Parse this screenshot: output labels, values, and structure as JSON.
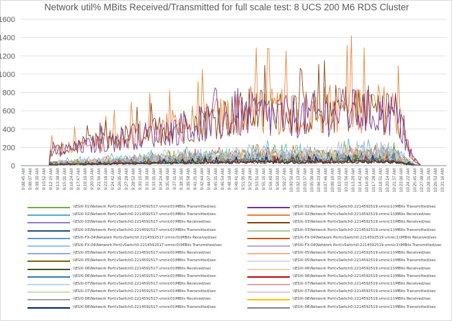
{
  "chart_data": {
    "type": "line",
    "title": "Network util% MBits Received/Transmitted for full scale test: 8 UCS 200  M6 RDS Cluster",
    "xlabel": "",
    "ylabel": "",
    "ylim": [
      0,
      1600
    ],
    "yticks": [
      0,
      200,
      400,
      600,
      800,
      1000,
      1200,
      1400,
      1600
    ],
    "grid": true,
    "legend_position": "bottom",
    "x_tick_labels": [
      "9:08:45 AM",
      "9:08:07 AM",
      "9:08:30 AM",
      "9:10:52 AM",
      "9:12:15 AM",
      "9:13:38 AM",
      "9:15:01 AM",
      "9:16:24 AM",
      "9:17:47 AM",
      "9:19:10 AM",
      "9:20:33 AM",
      "9:21:56 AM",
      "9:23:19 AM",
      "9:24:42 AM",
      "9:26:05 AM",
      "9:27:28 AM",
      "9:28:52 AM",
      "9:30:15 AM",
      "9:31:38 AM",
      "9:33:01 AM",
      "9:34:24 AM",
      "9:35:48 AM",
      "9:37:11 AM",
      "9:38:35 AM",
      "9:39:58 AM",
      "9:41:21 AM",
      "9:42:44 AM",
      "9:44:07 AM",
      "9:45:31 AM",
      "9:46:54 AM",
      "9:48:18 AM",
      "9:49:41 AM",
      "9:51:05 AM",
      "9:52:28 AM",
      "9:53:51 AM",
      "9:55:15 AM",
      "9:56:40 AM",
      "9:58:03 AM",
      "9:59:27 AM",
      "10:00:50 AM",
      "10:02:13 AM",
      "10:03:37 AM",
      "10:05:00 AM",
      "10:06:23 AM",
      "10:07:46 AM",
      "10:09:10 AM",
      "10:10:33 AM",
      "10:11:56 AM",
      "10:13:20 AM",
      "10:14:42 AM",
      "10:16:05 AM",
      "10:17:28 AM",
      "10:18:51 AM",
      "10:20:14 AM",
      "10:21:37 AM",
      "10:23:00 AM",
      "10:24:22 AM",
      "10:25:45 AM",
      "10:27:08 AM",
      "10:28:31 AM",
      "10:29:53 AM",
      "10:31:16 AM"
    ],
    "series_profiles": [
      {
        "name": "\\\\ESXi-01\\Network Port(vSwitch0:2214592517:vmnic0)\\MBits Transmitted/sec",
        "color": "#70ad47",
        "level": 120,
        "peak": 260,
        "width": 0.8
      },
      {
        "name": "\\\\ESXi-01\\Network Port(vSwitch0:2214592519:vmnic1)\\MBits Transmitted/sec",
        "color": "#7030a0",
        "level": 560,
        "peak": 1000,
        "width": 0.9
      },
      {
        "name": "\\\\ESXi-02\\Network Port(vSwitch0:2214592517:vmnic0)\\MBits Transmitted/sec",
        "color": "#4bacc6",
        "level": 150,
        "peak": 290,
        "width": 0.8
      },
      {
        "name": "\\\\ESXi-02\\Network Port(vSwitch0:2214592519:vmnic1)\\MBits Received/sec",
        "color": "#ed7d31",
        "level": 610,
        "peak": 1360,
        "width": 0.9
      },
      {
        "name": "\\\\ESXi-03\\Network Port(vSwitch0:2214592517:vmnic0)\\MBits Received/sec",
        "color": "#8e7cc3",
        "level": 90,
        "peak": 200,
        "width": 0.8
      },
      {
        "name": "\\\\ESXi-03\\Network Port(vSwitch0:2214592519:vmnic1)\\MBits Received/sec",
        "color": "#843c0c",
        "level": 600,
        "peak": 1150,
        "width": 0.9
      },
      {
        "name": "\\\\ESXi-03\\Network Port(vSwitch0:2214592517:vmnic0)\\MBits Transmitted/sec",
        "color": "#1f4e79",
        "level": 60,
        "peak": 150,
        "width": 0.8
      },
      {
        "name": "\\\\ESXi-03\\Network Port(vSwitch0:2214592519:vmnic1)\\MBits Transmitted/sec",
        "color": "#a9d18e",
        "level": 100,
        "peak": 230,
        "width": 0.8
      },
      {
        "name": "\\\\ESXi-FX-04\\Network Port(vSwitch0:2214592517:vmnic0)\\MBits Received/sec",
        "color": "#5b9bd5",
        "level": 80,
        "peak": 180,
        "width": 0.8
      },
      {
        "name": "\\\\ESXi-FX-04\\Network Port(vSwitch0:2214592519:vmnic1)\\MBits Received/sec",
        "color": "#c55a11",
        "level": 120,
        "peak": 240,
        "width": 0.8
      },
      {
        "name": "\\\\ESXi-FX-04\\Network Port(vSwitch0:2214592517:vmnic0)\\MBits Transmitted/sec",
        "color": "#9dc3e6",
        "level": 110,
        "peak": 250,
        "width": 0.8
      },
      {
        "name": "\\\\ESXi-FX-04\\Network Port(vSwitch0:2214592519:vmnic1)\\MBits Transmitted/sec",
        "color": "#b4a7d6",
        "level": 130,
        "peak": 260,
        "width": 0.8
      },
      {
        "name": "\\\\ESXi-05\\Network Port(vSwitch0:2214592517:vmnic0)\\MBits Received/sec",
        "color": "#8faadc",
        "level": 70,
        "peak": 160,
        "width": 0.8
      },
      {
        "name": "\\\\ESXi-05\\Network Port(vSwitch0:2214592519:vmnic1)\\MBits Received/sec",
        "color": "#f4b183",
        "level": 90,
        "peak": 200,
        "width": 0.8
      },
      {
        "name": "\\\\ESXi-05\\Network Port(vSwitch0:2214592517:vmnic0)\\MBits Transmitted/sec",
        "color": "#7f6000",
        "level": 50,
        "peak": 130,
        "width": 0.8
      },
      {
        "name": "\\\\ESXi-05\\Network Port(vSwitch0:2214592519:vmnic1)\\MBits Transmitted/sec",
        "color": "#d6dce4",
        "level": 60,
        "peak": 140,
        "width": 0.8
      },
      {
        "name": "\\\\ESXi-06\\Network Port(vSwitch0:2214592517:vmnic0)\\MBits Received/sec",
        "color": "#375623",
        "level": 40,
        "peak": 120,
        "width": 0.8
      },
      {
        "name": "\\\\ESXi-06\\Network Port(vSwitch0:2214592519:vmnic1)\\MBits Received/sec",
        "color": "#f8cbad",
        "level": 100,
        "peak": 210,
        "width": 0.8
      },
      {
        "name": "\\\\ESXi-06\\Network Port(vSwitch0:2214592517:vmnic0)\\MBits Transmitted/sec",
        "color": "#2e75b6",
        "level": 60,
        "peak": 140,
        "width": 0.8
      },
      {
        "name": "\\\\ESXi-06\\Network Port(vSwitch0:2214592519:vmnic1)\\MBits Transmitted/sec",
        "color": "#c00000",
        "level": 40,
        "peak": 110,
        "width": 0.8
      },
      {
        "name": "\\\\ESXi-07\\Network Port(vSwitch0:2214592517:vmnic0)\\MBits Received/sec",
        "color": "#bdd7ee",
        "level": 120,
        "peak": 230,
        "width": 0.8
      },
      {
        "name": "\\\\ESXi-07\\Network Port(vSwitch0:2214592519:vmnic1)\\MBits Received/sec",
        "color": "#d9a6a6",
        "level": 90,
        "peak": 200,
        "width": 0.8
      },
      {
        "name": "\\\\ESXi-07\\Network Port(vSwitch0:2214592517:vmnic0)\\MBits Transmitted/sec",
        "color": "#c5e0b4",
        "level": 70,
        "peak": 160,
        "width": 0.8
      },
      {
        "name": "\\\\ESXi-07\\Network Port(vSwitch0:2214592519:vmnic1)\\MBits Transmitted/sec",
        "color": "#dbc9e8",
        "level": 80,
        "peak": 170,
        "width": 0.8
      },
      {
        "name": "\\\\ESXi-08\\Network Port(vSwitch0:2214592517:vmnic0)\\MBits Received/sec",
        "color": "#9e9e9e",
        "level": 50,
        "peak": 130,
        "width": 0.8
      },
      {
        "name": "\\\\ESXi-08\\Network Port(vSwitch0:2214592519:vmnic1)\\MBits Received/sec",
        "color": "#ffc000",
        "level": 70,
        "peak": 150,
        "width": 0.8
      },
      {
        "name": "\\\\ESXi-08\\Network Port(vSwitch0:2214592517:vmnic0)\\MBits Transmitted/sec",
        "color": "#002060",
        "level": 40,
        "peak": 110,
        "width": 1.2
      },
      {
        "name": "\\\\ESXi-08\\Network Port(vSwitch0:2214592519:vmnic1)\\MBits Transmitted/sec",
        "color": "#808080",
        "level": 60,
        "peak": 140,
        "width": 0.8
      }
    ],
    "legend_left": [
      {
        "name": "\\\\ESXi-01\\Network Port(vSwitch0:2214592517:vmnic0)\\MBits Transmitted/sec",
        "color": "#70ad47"
      },
      {
        "name": "\\\\ESXi-02\\Network Port(vSwitch0:2214592517:vmnic0)\\MBits Transmitted/sec",
        "color": "#4bacc6"
      },
      {
        "name": "\\\\ESXi-03\\Network Port(vSwitch0:2214592517:vmnic0)\\MBits Received/sec",
        "color": "#8e7cc3"
      },
      {
        "name": "\\\\ESXi-03\\Network Port(vSwitch0:2214592517:vmnic0)\\MBits Transmitted/sec",
        "color": "#1f4e79"
      },
      {
        "name": "\\\\ESXi-FX-04\\Network Port(vSwitch0:2214592517:vmnic0)\\MBits Received/sec",
        "color": "#5b9bd5"
      },
      {
        "name": "\\\\ESXi-FX-04\\Network Port(vSwitch0:2214592517:vmnic0)\\MBits Transmitted/sec",
        "color": "#9dc3e6"
      },
      {
        "name": "\\\\ESXi-05\\Network Port(vSwitch0:2214592517:vmnic0)\\MBits Received/sec",
        "color": "#8faadc"
      },
      {
        "name": "\\\\ESXi-05\\Network Port(vSwitch0:2214592517:vmnic0)\\MBits Transmitted/sec",
        "color": "#7f6000"
      },
      {
        "name": "\\\\ESXi-06\\Network Port(vSwitch0:2214592517:vmnic0)\\MBits Received/sec",
        "color": "#375623"
      },
      {
        "name": "\\\\ESXi-06\\Network Port(vSwitch0:2214592517:vmnic0)\\MBits Transmitted/sec",
        "color": "#2e75b6"
      },
      {
        "name": "\\\\ESXi-07\\Network Port(vSwitch0:2214592517:vmnic0)\\MBits Received/sec",
        "color": "#bdd7ee"
      },
      {
        "name": "\\\\ESXi-07\\Network Port(vSwitch0:2214592517:vmnic0)\\MBits Transmitted/sec",
        "color": "#c5e0b4"
      },
      {
        "name": "\\\\ESXi-08\\Network Port(vSwitch0:2214592517:vmnic0)\\MBits Received/sec",
        "color": "#9e9e9e"
      },
      {
        "name": "\\\\ESXi-08\\Network Port(vSwitch0:2214592517:vmnic0)\\MBits Transmitted/sec",
        "color": "#002060"
      }
    ],
    "legend_right": [
      {
        "name": "\\\\ESXi-01\\Network Port(vSwitch0:2214592519:vmnic1)\\MBits Transmitted/sec",
        "color": "#7030a0"
      },
      {
        "name": "\\\\ESXi-02\\Network Port(vSwitch0:2214592519:vmnic1)\\MBits Received/sec",
        "color": "#ed7d31"
      },
      {
        "name": "\\\\ESXi-03\\Network Port(vSwitch0:2214592519:vmnic1)\\MBits Received/sec",
        "color": "#843c0c"
      },
      {
        "name": "\\\\ESXi-03\\Network Port(vSwitch0:2214592519:vmnic1)\\MBits Transmitted/sec",
        "color": "#a9d18e"
      },
      {
        "name": "\\\\ESXi-FX-04\\Network Port(vSwitch0:2214592519:vmnic1)\\MBits Received/sec",
        "color": "#c55a11"
      },
      {
        "name": "\\\\ESXi-FX-04\\Network Port(vSwitch0:2214592519:vmnic1)\\MBits Transmitted/sec",
        "color": "#b4a7d6"
      },
      {
        "name": "\\\\ESXi-05\\Network Port(vSwitch0:2214592519:vmnic1)\\MBits Received/sec",
        "color": "#f4b183"
      },
      {
        "name": "\\\\ESXi-05\\Network Port(vSwitch0:2214592519:vmnic1)\\MBits Transmitted/sec",
        "color": "#d6dce4"
      },
      {
        "name": "\\\\ESXi-06\\Network Port(vSwitch0:2214592519:vmnic1)\\MBits Received/sec",
        "color": "#f8cbad"
      },
      {
        "name": "\\\\ESXi-06\\Network Port(vSwitch0:2214592519:vmnic1)\\MBits Transmitted/sec",
        "color": "#c00000"
      },
      {
        "name": "\\\\ESXi-07\\Network Port(vSwitch0:2214592519:vmnic1)\\MBits Received/sec",
        "color": "#d9a6a6"
      },
      {
        "name": "\\\\ESXi-07\\Network Port(vSwitch0:2214592519:vmnic1)\\MBits Transmitted/sec",
        "color": "#dbc9e8"
      },
      {
        "name": "\\\\ESXi-08\\Network Port(vSwitch0:2214592519:vmnic1)\\MBits Received/sec",
        "color": "#ffc000"
      },
      {
        "name": "\\\\ESXi-08\\Network Port(vSwitch0:2214592519:vmnic1)\\MBits Transmitted/sec",
        "color": "#808080"
      }
    ]
  }
}
